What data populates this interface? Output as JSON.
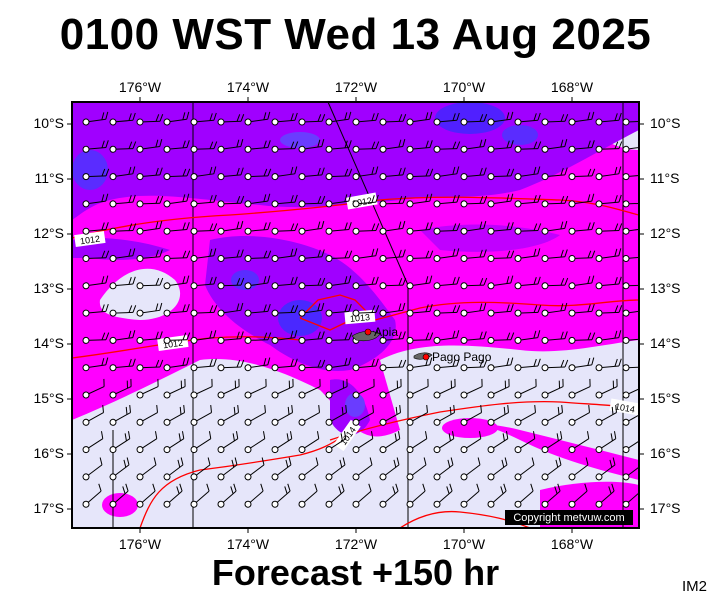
{
  "header": {
    "title": "0100 WST Wed 13 Aug 2025"
  },
  "footer": {
    "forecast": "Forecast +150 hr",
    "code": "IM2"
  },
  "map": {
    "lon_labels": [
      "176°W",
      "174°W",
      "172°W",
      "170°W",
      "168°W"
    ],
    "lat_labels": [
      "10°S",
      "11°S",
      "12°S",
      "13°S",
      "14°S",
      "15°S",
      "16°S",
      "17°S"
    ],
    "places": [
      {
        "name": "Apia"
      },
      {
        "name": "Pago Pago"
      }
    ],
    "isobars": [
      "1012",
      "1012",
      "1013",
      "1012",
      "1014",
      "1014"
    ],
    "copyright": "Copyright metvuw.com",
    "colors": {
      "low": "#e6e6fa",
      "mid": "#ff00ff",
      "high": "#a000ff",
      "max": "#5020ff",
      "isobar": "#ff0000"
    }
  }
}
